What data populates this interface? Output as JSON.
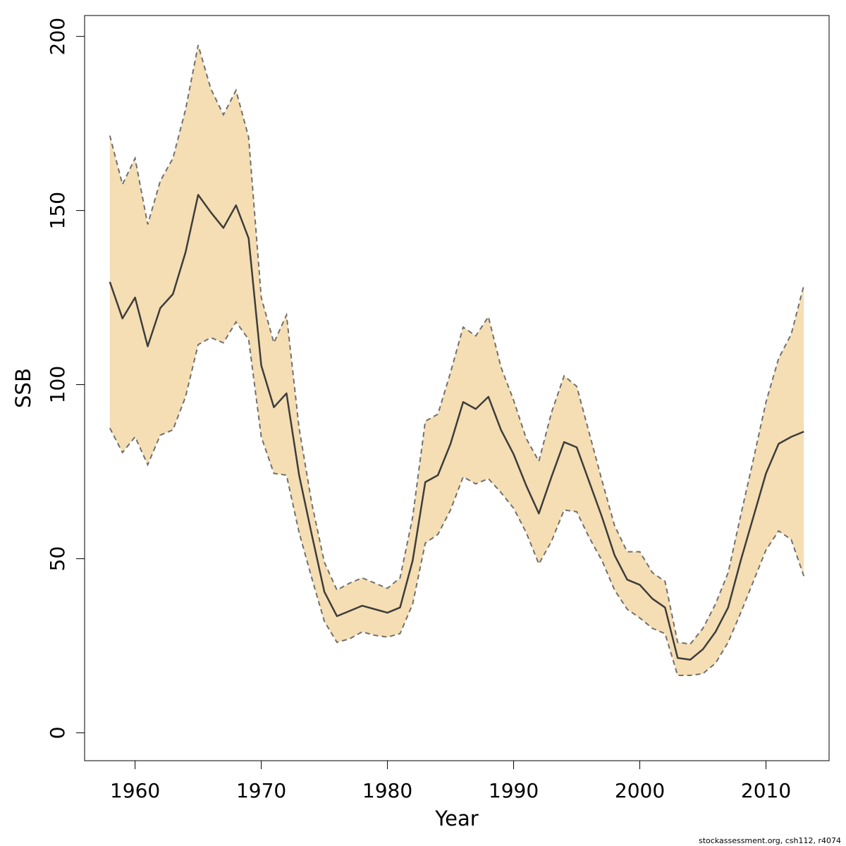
{
  "chart_data": {
    "type": "line",
    "xlabel": "Year",
    "ylabel": "SSB",
    "xlim": [
      1956,
      2015
    ],
    "ylim": [
      -8,
      206
    ],
    "x_ticks": [
      1960,
      1970,
      1980,
      1990,
      2000,
      2010
    ],
    "y_ticks": [
      0,
      50,
      100,
      150,
      200
    ],
    "grid": false,
    "legend": "none",
    "colors": {
      "band": "#F5DEB3",
      "line": "#3d3d3d",
      "bound": "#707070"
    },
    "series": [
      {
        "style": "solid",
        "x": [
          1958,
          1959,
          1960,
          1961,
          1962,
          1963,
          1964,
          1965,
          1966,
          1967,
          1968,
          1969,
          1970,
          1971,
          1972,
          1973,
          1974,
          1975,
          1976,
          1977,
          1978,
          1979,
          1980,
          1981,
          1982,
          1983,
          1984,
          1985,
          1986,
          1987,
          1988,
          1989,
          1990,
          1991,
          1992,
          1993,
          1994,
          1995,
          1996,
          1997,
          1998,
          1999,
          2000,
          2001,
          2002,
          2003,
          2004,
          2005,
          2006,
          2007,
          2008,
          2009,
          2010,
          2011,
          2012,
          2013
        ],
        "y": [
          129.5,
          119,
          125,
          111,
          122,
          126,
          138,
          154.5,
          149.5,
          145,
          151.5,
          142,
          105.5,
          93.5,
          97.5,
          74,
          57,
          40.5,
          33.5,
          35,
          36.5,
          35.5,
          34.5,
          36,
          49.5,
          72,
          74,
          83,
          95,
          93,
          96.5,
          87,
          80,
          71,
          63,
          73.5,
          83.5,
          82,
          72,
          62,
          51,
          44,
          42.5,
          38.5,
          36,
          21.5,
          21,
          24,
          29,
          36,
          49.5,
          62,
          74.5,
          83,
          85,
          86.5
        ]
      },
      {
        "style": "dashed",
        "band": "lower",
        "x": [
          1958,
          1959,
          1960,
          1961,
          1962,
          1963,
          1964,
          1965,
          1966,
          1967,
          1968,
          1969,
          1970,
          1971,
          1972,
          1973,
          1974,
          1975,
          1976,
          1977,
          1978,
          1979,
          1980,
          1981,
          1982,
          1983,
          1984,
          1985,
          1986,
          1987,
          1988,
          1989,
          1990,
          1991,
          1992,
          1993,
          1994,
          1995,
          1996,
          1997,
          1998,
          1999,
          2000,
          2001,
          2002,
          2003,
          2004,
          2005,
          2006,
          2007,
          2008,
          2009,
          2010,
          2011,
          2012,
          2013
        ],
        "y": [
          87.5,
          80.5,
          85,
          77,
          85.5,
          87,
          96.5,
          111.5,
          113.5,
          112,
          118,
          113,
          85,
          74.5,
          74,
          57.5,
          44.5,
          32,
          26,
          27,
          29,
          28,
          27.5,
          28.5,
          37,
          54.5,
          57,
          64,
          73.5,
          71.5,
          73,
          69,
          64.5,
          57.5,
          48.5,
          55,
          64,
          63.5,
          56,
          49.5,
          41,
          35.5,
          33,
          30,
          28.5,
          16.5,
          16.5,
          17,
          20,
          26,
          34.5,
          43.5,
          52.5,
          58,
          55.5,
          45
        ]
      },
      {
        "style": "dashed",
        "band": "upper",
        "x": [
          1958,
          1959,
          1960,
          1961,
          1962,
          1963,
          1964,
          1965,
          1966,
          1967,
          1968,
          1969,
          1970,
          1971,
          1972,
          1973,
          1974,
          1975,
          1976,
          1977,
          1978,
          1979,
          1980,
          1981,
          1982,
          1983,
          1984,
          1985,
          1986,
          1987,
          1988,
          1989,
          1990,
          1991,
          1992,
          1993,
          1994,
          1995,
          1996,
          1997,
          1998,
          1999,
          2000,
          2001,
          2002,
          2003,
          2004,
          2005,
          2006,
          2007,
          2008,
          2009,
          2010,
          2011,
          2012,
          2013
        ],
        "y": [
          171.5,
          157.5,
          165,
          146,
          158.5,
          165,
          179,
          197.5,
          185,
          177.5,
          184.5,
          171,
          125,
          112,
          120,
          87.5,
          66,
          49,
          41,
          43,
          44.5,
          43,
          41.5,
          44.5,
          62,
          89.5,
          91.5,
          103.5,
          116.5,
          114,
          119.5,
          105,
          95.5,
          84.5,
          78,
          92,
          102.5,
          99.5,
          86,
          72.5,
          59.5,
          52,
          52,
          46,
          43.5,
          26,
          25.5,
          30,
          37,
          46,
          62.5,
          78.5,
          95,
          107.5,
          114.5,
          128.5
        ]
      }
    ]
  },
  "footnote": "stockassessment.org, csh112, r4074"
}
